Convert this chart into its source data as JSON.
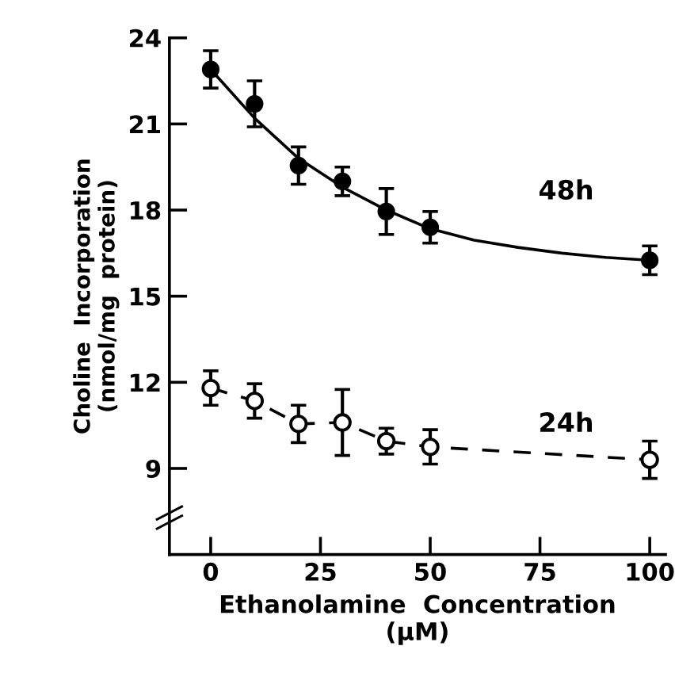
{
  "chart_data": {
    "type": "scatter",
    "xlabel": "Ethanolamine  Concentration\n(µM)",
    "ylabel": "Choline  Incorporation\n(nmol/mg  protein)",
    "xlim": [
      -9.4,
      103.6
    ],
    "xticks": [
      0,
      25,
      50,
      75,
      100
    ],
    "ylim": [
      6,
      24
    ],
    "yticks": [
      9,
      12,
      15,
      18,
      21,
      24
    ],
    "grid": false,
    "marker": "circle",
    "series": [
      {
        "name": "48h",
        "color": "#000000",
        "x": [
          0,
          10,
          20,
          30,
          40,
          50,
          100
        ],
        "values": [
          22.9,
          21.7,
          19.55,
          19.0,
          17.95,
          17.4,
          16.25
        ],
        "errors": [
          0.65,
          0.8,
          0.65,
          0.5,
          0.8,
          0.55,
          0.5
        ]
      },
      {
        "type": "line",
        "line_style": "solid",
        "marker": "none",
        "color": "#000000",
        "x": [
          0,
          10,
          20,
          30,
          40,
          50,
          60,
          70,
          80,
          90,
          100
        ],
        "values": [
          22.9,
          21.2,
          19.8,
          18.8,
          18.0,
          17.35,
          16.95,
          16.7,
          16.5,
          16.35,
          16.25
        ]
      },
      {
        "type": "line",
        "name": "24h",
        "line_style": "dashed",
        "color": "#000000",
        "x": [
          0,
          10,
          20,
          30,
          40,
          50,
          100
        ],
        "values": [
          11.8,
          11.35,
          10.55,
          10.6,
          9.95,
          9.75,
          9.3
        ],
        "errors": [
          0.6,
          0.6,
          0.65,
          1.15,
          0.45,
          0.6,
          0.65
        ]
      }
    ]
  }
}
